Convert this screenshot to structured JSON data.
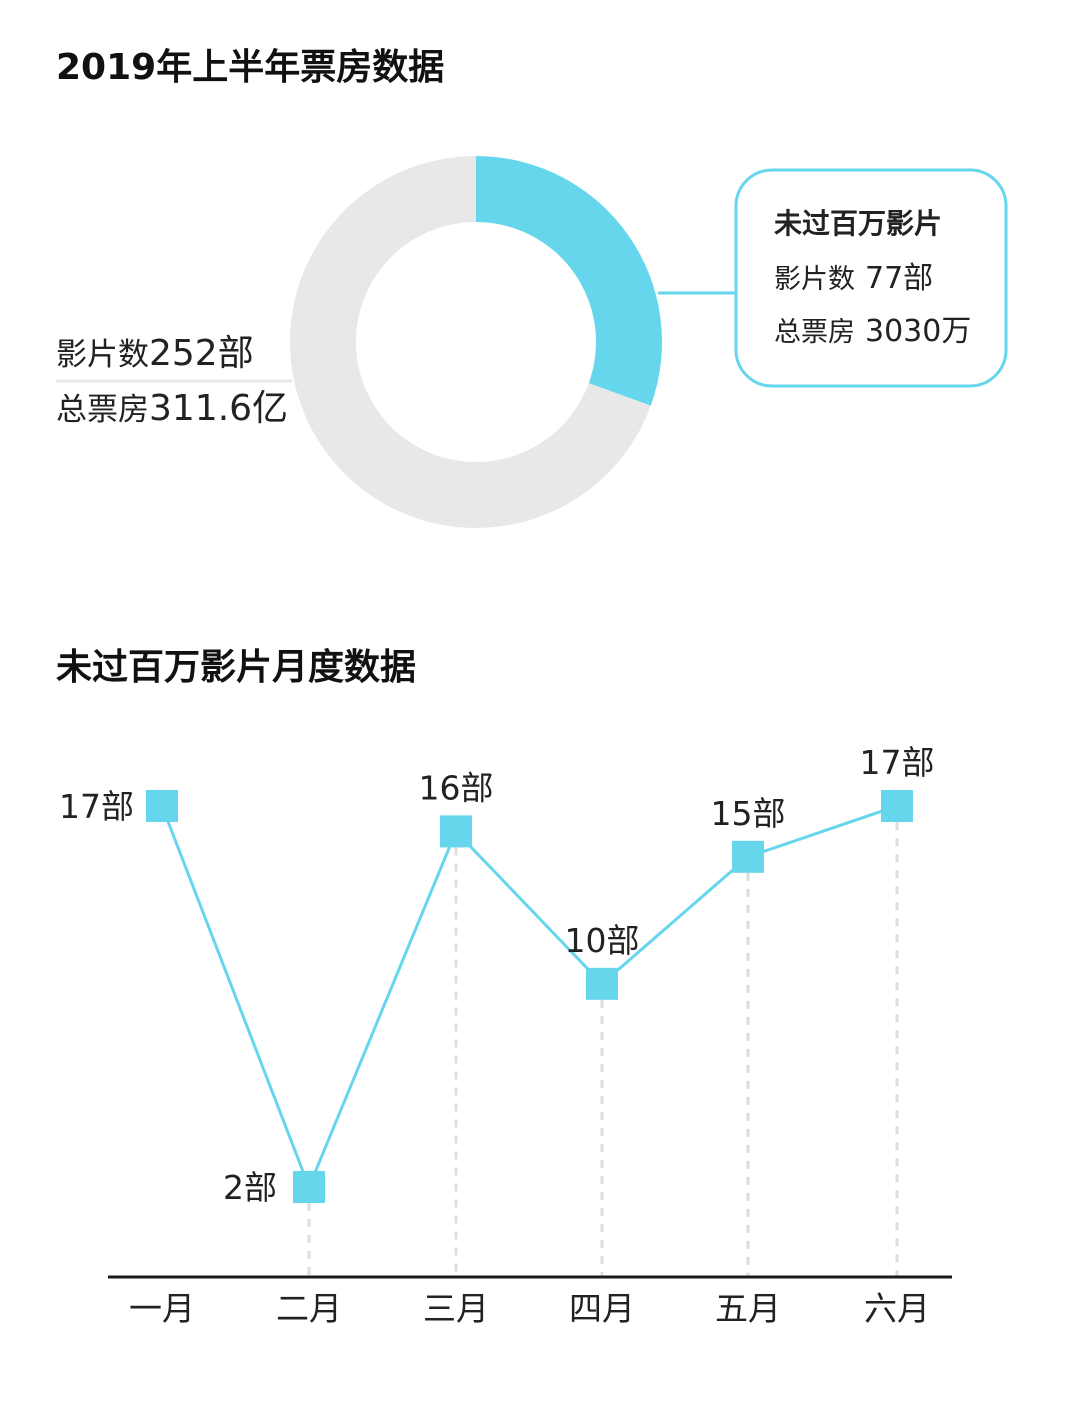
{
  "colors": {
    "accent": "#66d6ec",
    "ring_bg": "#e8e8e8",
    "text": "#222222",
    "axis": "#1a1a1a",
    "guide": "#dddddd"
  },
  "sections": {
    "overview_title": "2019年上半年票房数据",
    "monthly_title": "未过百万影片月度数据"
  },
  "chart_data": [
    {
      "type": "pie",
      "variant": "donut",
      "title": "2019年上半年票房数据",
      "slices": [
        {
          "key": "under_million",
          "share": 0.3056,
          "color": "#66d6ec"
        },
        {
          "key": "rest",
          "share": 0.6944,
          "color": "#e8e8e8"
        }
      ],
      "total": {
        "films_label": "影片数",
        "films_value": "252部",
        "box_label": "总票房",
        "box_value": "311.6亿"
      },
      "callout": {
        "title": "未过百万影片",
        "films_label": "影片数",
        "films_value": "77部",
        "box_label": "总票房",
        "box_value": "3030万"
      }
    },
    {
      "type": "line",
      "title": "未过百万影片月度数据",
      "categories": [
        "一月",
        "二月",
        "三月",
        "四月",
        "五月",
        "六月"
      ],
      "values": [
        17,
        2,
        16,
        10,
        15,
        17
      ],
      "unit": "部",
      "marker": "square",
      "ylim": [
        0,
        17
      ],
      "grid": false
    }
  ]
}
